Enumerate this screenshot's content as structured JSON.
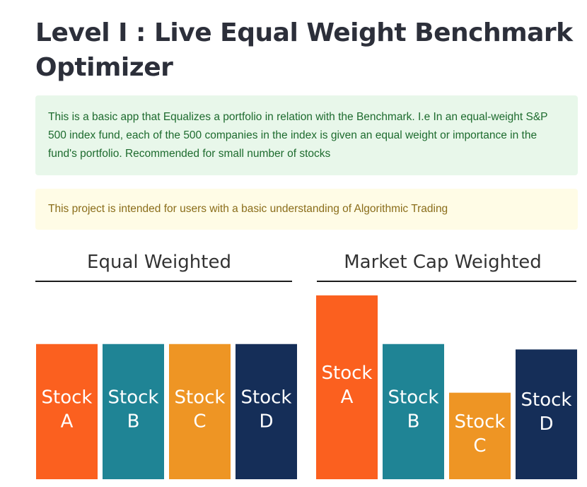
{
  "title": "Level I : Live Equal Weight Benchmark Optimizer",
  "info_text": "This is a basic app that Equalizes a portfolio in relation with the Benchmark. I.e In an equal-weight S&P 500 index fund, each of the 500 companies in the index is given an equal weight or importance in the fund's portfolio. Recommended for small number of stocks",
  "warning_text": "This project is intended for users with a basic understanding of Algorithmic Trading",
  "colors": {
    "orange_red": "#fb601f",
    "teal": "#1f8495",
    "orange": "#ee9524",
    "navy": "#152e58"
  },
  "chart_data": [
    {
      "type": "bar",
      "title": "Equal Weighted",
      "categories": [
        "Stock A",
        "Stock B",
        "Stock C",
        "Stock D"
      ],
      "bar_label_lines": [
        [
          "Stock",
          "A"
        ],
        [
          "Stock",
          "B"
        ],
        [
          "Stock",
          "C"
        ],
        [
          "Stock",
          "D"
        ]
      ],
      "values": [
        25,
        25,
        25,
        25
      ],
      "bar_colors": [
        "#fb601f",
        "#1f8495",
        "#ee9524",
        "#152e58"
      ]
    },
    {
      "type": "bar",
      "title": "Market Cap Weighted",
      "categories": [
        "Stock A",
        "Stock B",
        "Stock C",
        "Stock D"
      ],
      "bar_label_lines": [
        [
          "Stock",
          "A"
        ],
        [
          "Stock",
          "B"
        ],
        [
          "Stock",
          "C"
        ],
        [
          "Stock",
          "D"
        ]
      ],
      "values": [
        34,
        25,
        16,
        24
      ],
      "bar_colors": [
        "#fb601f",
        "#1f8495",
        "#ee9524",
        "#152e58"
      ]
    }
  ]
}
